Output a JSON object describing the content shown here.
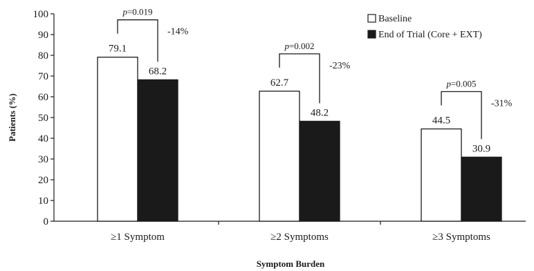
{
  "chart_data": {
    "type": "bar",
    "categories": [
      "≥1 Symptom",
      "≥2 Symptoms",
      "≥3 Symptoms"
    ],
    "series": [
      {
        "name": "Baseline",
        "values": [
          79.1,
          62.7,
          44.5
        ],
        "color": "#ffffff",
        "value_labels": [
          "79.1",
          "62.7",
          "44.5"
        ]
      },
      {
        "name": "End of Trial (Core + EXT)",
        "values": [
          68.2,
          48.2,
          30.9
        ],
        "color": "#1a1a1a",
        "value_labels": [
          "68.2",
          "48.2",
          "30.9"
        ]
      }
    ],
    "xlabel": "Symptom Burden",
    "ylabel": "Patients (%)",
    "ylim": [
      0,
      100
    ],
    "yticks": [
      0,
      10,
      20,
      30,
      40,
      50,
      60,
      70,
      80,
      90,
      100
    ],
    "grid": false,
    "legend_position": "top-right",
    "annotations": [
      {
        "p_symbol": "p",
        "p_value": "=0.019",
        "change": "-14%"
      },
      {
        "p_symbol": "p",
        "p_value": "=0.002",
        "change": "-23%"
      },
      {
        "p_symbol": "p",
        "p_value": "=0.005",
        "change": "-31%"
      }
    ]
  }
}
